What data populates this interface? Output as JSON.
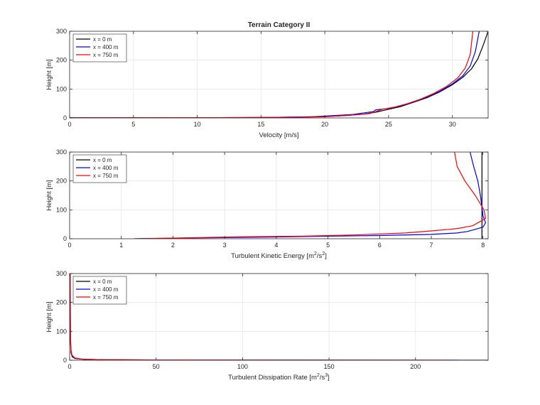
{
  "figure": {
    "background": "#ffffff",
    "axes_color": "#262626",
    "grid_color": "#e6e6e6"
  },
  "chart_data": [
    {
      "type": "line",
      "title": "Terrain Category II",
      "xlabel": "Velocity [m/s]",
      "ylabel": "Height [m]",
      "xlim": [
        0,
        32.8
      ],
      "ylim": [
        0,
        300
      ],
      "xticks": [
        0,
        5,
        10,
        15,
        20,
        25,
        30
      ],
      "yticks": [
        0,
        100,
        200,
        300
      ],
      "grid": true,
      "legend_position": "top-left",
      "series": [
        {
          "name": "x = 0 m",
          "color": "#000000",
          "points": [
            [
              0,
              0.5
            ],
            [
              10,
              0.8
            ],
            [
              15,
              1.5
            ],
            [
              18,
              3
            ],
            [
              20,
              5
            ],
            [
              21.5,
              8
            ],
            [
              23,
              13
            ],
            [
              24,
              20
            ],
            [
              25,
              30
            ],
            [
              26,
              40
            ],
            [
              27,
              55
            ],
            [
              28,
              70
            ],
            [
              29,
              90
            ],
            [
              30,
              115
            ],
            [
              30.8,
              140
            ],
            [
              31.5,
              170
            ],
            [
              32,
              205
            ],
            [
              32.4,
              250
            ],
            [
              32.8,
              300
            ]
          ]
        },
        {
          "name": "x = 400 m",
          "color": "#0000ff",
          "points": [
            [
              0,
              0.5
            ],
            [
              10,
              0.8
            ],
            [
              15,
              1.5
            ],
            [
              19,
              4
            ],
            [
              21,
              9
            ],
            [
              22.2,
              12
            ],
            [
              23,
              17
            ],
            [
              23.8,
              22
            ],
            [
              24,
              28
            ],
            [
              25,
              33
            ],
            [
              26,
              42
            ],
            [
              27,
              56
            ],
            [
              28,
              72
            ],
            [
              29,
              92
            ],
            [
              30,
              118
            ],
            [
              30.8,
              145
            ],
            [
              31.4,
              180
            ],
            [
              31.8,
              230
            ],
            [
              32.1,
              300
            ]
          ]
        },
        {
          "name": "x = 750 m",
          "color": "#ff0000",
          "points": [
            [
              0,
              0.5
            ],
            [
              12,
              1
            ],
            [
              18,
              2
            ],
            [
              20,
              4
            ],
            [
              21.5,
              8
            ],
            [
              22.5,
              11
            ],
            [
              23.5,
              15
            ],
            [
              24,
              22
            ],
            [
              24.5,
              30
            ],
            [
              25.5,
              38
            ],
            [
              26.5,
              50
            ],
            [
              27.5,
              65
            ],
            [
              28.5,
              84
            ],
            [
              29.5,
              108
            ],
            [
              30.4,
              138
            ],
            [
              31,
              172
            ],
            [
              31.4,
              220
            ],
            [
              31.6,
              300
            ]
          ]
        }
      ]
    },
    {
      "type": "line",
      "title": "",
      "xlabel": "Turbulent Kinetic Energy [m²/s²]",
      "ylabel": "Height [m]",
      "xlim": [
        0,
        8.1
      ],
      "ylim": [
        0,
        300
      ],
      "xticks": [
        0,
        1,
        2,
        3,
        4,
        5,
        6,
        7,
        8
      ],
      "yticks": [
        0,
        100,
        200,
        300
      ],
      "grid": true,
      "legend_position": "top-left",
      "series": [
        {
          "name": "x = 0 m",
          "color": "#000000",
          "points": [
            [
              7.98,
              0
            ],
            [
              7.98,
              300
            ]
          ]
        },
        {
          "name": "x = 400 m",
          "color": "#0000ff",
          "points": [
            [
              1.25,
              0
            ],
            [
              2.5,
              3
            ],
            [
              4,
              6
            ],
            [
              5,
              9
            ],
            [
              6,
              11
            ],
            [
              7,
              15
            ],
            [
              7.5,
              20
            ],
            [
              7.7,
              25
            ],
            [
              8.0,
              40
            ],
            [
              8.05,
              55
            ],
            [
              8.0,
              80
            ],
            [
              7.98,
              110
            ],
            [
              7.95,
              150
            ],
            [
              7.9,
              200
            ],
            [
              7.82,
              250
            ],
            [
              7.75,
              300
            ]
          ]
        },
        {
          "name": "x = 750 m",
          "color": "#ff0000",
          "points": [
            [
              1.3,
              0
            ],
            [
              2.5,
              4
            ],
            [
              3.5,
              7
            ],
            [
              4.5,
              9
            ],
            [
              5.5,
              13
            ],
            [
              6.5,
              20
            ],
            [
              7,
              27
            ],
            [
              7.5,
              35
            ],
            [
              7.8,
              45
            ],
            [
              8.05,
              70
            ],
            [
              8.02,
              100
            ],
            [
              7.85,
              150
            ],
            [
              7.65,
              200
            ],
            [
              7.5,
              250
            ],
            [
              7.45,
              300
            ]
          ]
        }
      ]
    },
    {
      "type": "line",
      "title": "",
      "xlabel": "Turbulent Dissipation Rate [m²/s³]",
      "ylabel": "Height [m]",
      "xlim": [
        0,
        242
      ],
      "ylim": [
        0,
        300
      ],
      "xticks": [
        0,
        50,
        100,
        150,
        200
      ],
      "yticks": [
        0,
        100,
        200,
        300
      ],
      "grid": true,
      "legend_position": "top-left",
      "series": [
        {
          "name": "x = 0 m",
          "color": "#000000",
          "points": [
            [
              242,
              0
            ],
            [
              150,
              0.3
            ],
            [
              60,
              0.8
            ],
            [
              20,
              1.8
            ],
            [
              8,
              3
            ],
            [
              3,
              6
            ],
            [
              1.5,
              12
            ],
            [
              0.8,
              25
            ],
            [
              0.5,
              60
            ],
            [
              0.4,
              150
            ],
            [
              0.3,
              300
            ]
          ]
        },
        {
          "name": "x = 400 m",
          "color": "#0000ff",
          "points": [
            [
              225,
              0
            ],
            [
              140,
              0.3
            ],
            [
              55,
              0.8
            ],
            [
              18,
              1.8
            ],
            [
              7,
              3.5
            ],
            [
              3,
              7
            ],
            [
              1.5,
              14
            ],
            [
              0.8,
              30
            ],
            [
              0.5,
              80
            ],
            [
              0.35,
              300
            ]
          ]
        },
        {
          "name": "x = 750 m",
          "color": "#ff0000",
          "points": [
            [
              221,
              0
            ],
            [
              130,
              0.3
            ],
            [
              50,
              0.8
            ],
            [
              17,
              2
            ],
            [
              7,
              4
            ],
            [
              3,
              8
            ],
            [
              1.3,
              18
            ],
            [
              0.7,
              40
            ],
            [
              0.4,
              120
            ],
            [
              0.3,
              300
            ]
          ]
        }
      ]
    }
  ]
}
